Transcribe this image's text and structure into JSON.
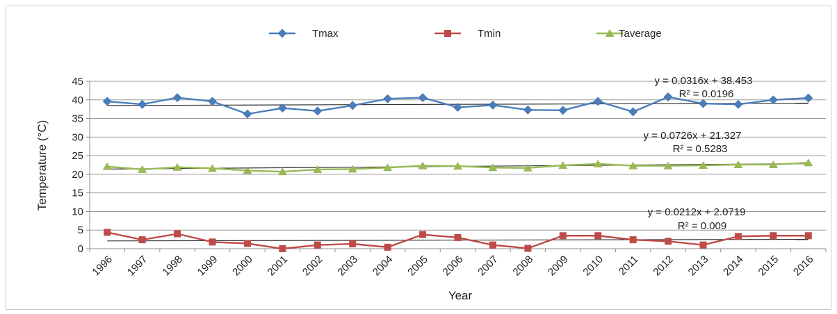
{
  "chart_data": {
    "type": "line",
    "xlabel": "Year",
    "ylabel": "Temperature (°C)",
    "ylim": [
      0,
      45
    ],
    "yticks": [
      0,
      5,
      10,
      15,
      20,
      25,
      30,
      35,
      40,
      45
    ],
    "grid": true,
    "legend_position": "top",
    "categories": [
      "1996",
      "1997",
      "1998",
      "1999",
      "2000",
      "2001",
      "2002",
      "2003",
      "2004",
      "2005",
      "2006",
      "2007",
      "2008",
      "2009",
      "2010",
      "2011",
      "2012",
      "2013",
      "2014",
      "2015",
      "2016"
    ],
    "series": [
      {
        "name": "Tmax",
        "color": "#4a7ebb",
        "marker": "diamond",
        "values": [
          39.6,
          38.8,
          40.6,
          39.6,
          36.2,
          37.8,
          37.0,
          38.5,
          40.3,
          40.6,
          38.0,
          38.6,
          37.3,
          37.2,
          39.6,
          36.8,
          40.8,
          39.0,
          38.8,
          40.0,
          40.5
        ],
        "trendline": {
          "equation": "y = 0.0316x + 38.453",
          "r2": "R² = 0.0196",
          "slope": 0.0316,
          "intercept": 38.453
        }
      },
      {
        "name": "Tmin",
        "color": "#be4b48",
        "marker": "square",
        "values": [
          4.4,
          2.4,
          4.0,
          1.8,
          1.4,
          0.0,
          1.0,
          1.3,
          0.4,
          3.8,
          3.0,
          1.0,
          0.1,
          3.5,
          3.5,
          2.4,
          2.0,
          1.0,
          3.3,
          3.5,
          3.5
        ],
        "trendline": {
          "equation": "y = 0.0212x + 2.0719",
          "r2": "R² = 0.009",
          "slope": 0.0212,
          "intercept": 2.0719
        }
      },
      {
        "name": "Taverage",
        "color": "#98b954",
        "marker": "triangle",
        "values": [
          22.1,
          21.3,
          21.9,
          21.6,
          21.0,
          20.7,
          21.3,
          21.4,
          21.8,
          22.3,
          22.2,
          21.8,
          21.7,
          22.4,
          22.8,
          22.3,
          22.3,
          22.4,
          22.6,
          22.6,
          23.1
        ],
        "trendline": {
          "equation": "y = 0.0726x + 21.327",
          "r2": "R² = 0.5283",
          "slope": 0.0726,
          "intercept": 21.327
        }
      }
    ]
  }
}
